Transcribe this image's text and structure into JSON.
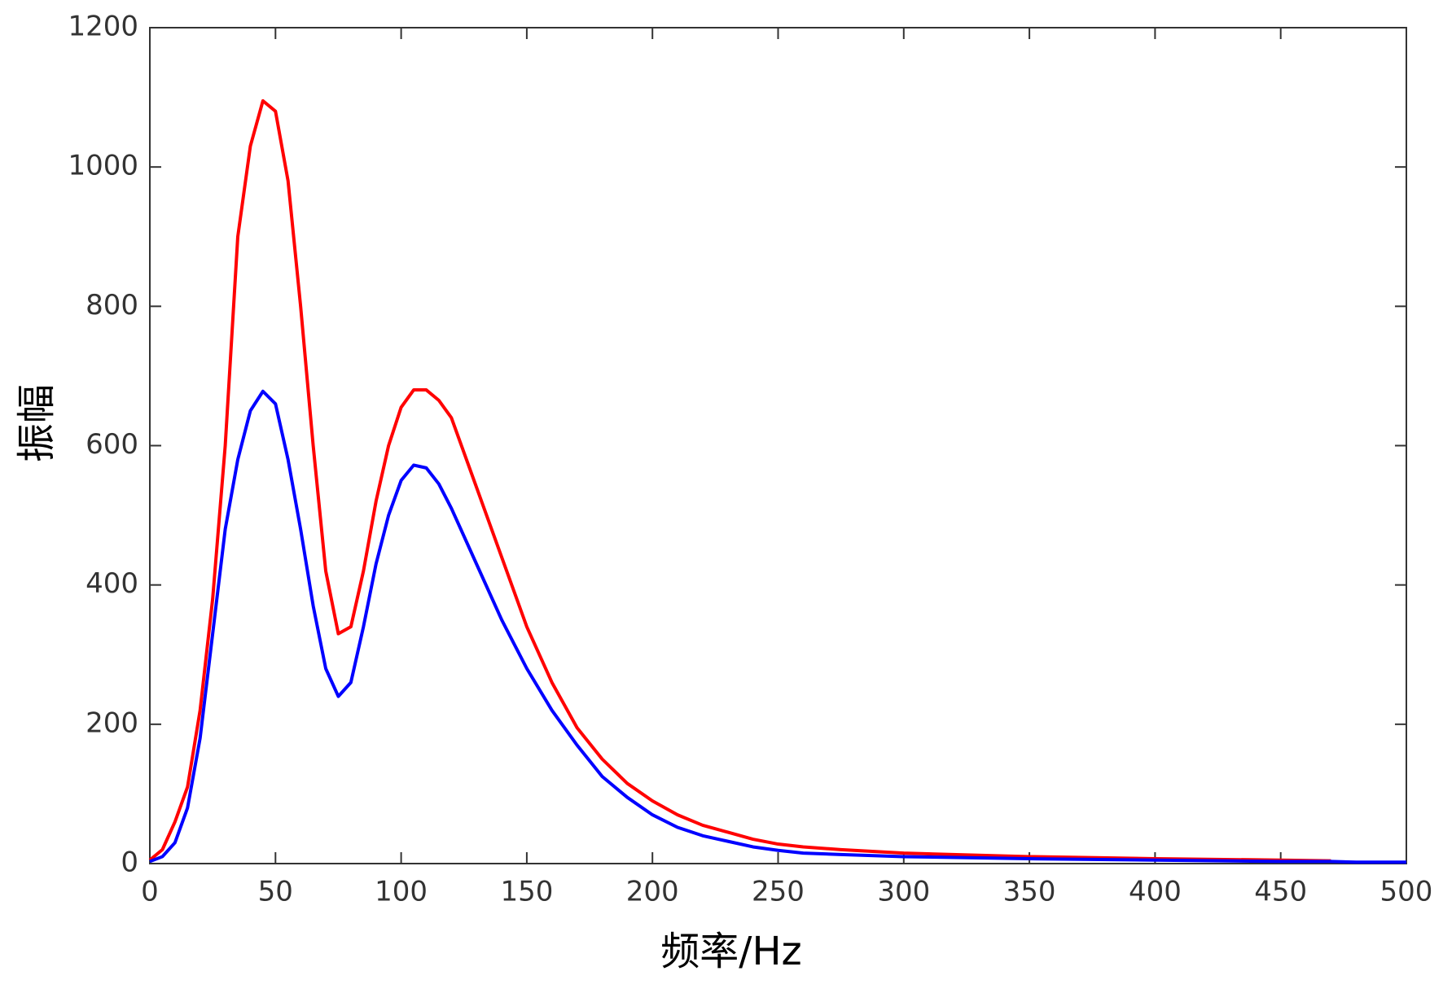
{
  "chart_data": {
    "type": "line",
    "xlabel": "频率/Hz",
    "ylabel": "振幅",
    "x": [
      0,
      5,
      10,
      15,
      20,
      25,
      30,
      35,
      40,
      45,
      50,
      55,
      60,
      65,
      70,
      75,
      80,
      85,
      90,
      95,
      100,
      105,
      110,
      115,
      120,
      130,
      140,
      150,
      160,
      170,
      180,
      190,
      200,
      210,
      220,
      230,
      240,
      250,
      260,
      275,
      300,
      350,
      400,
      450,
      470,
      480,
      490,
      500
    ],
    "series": [
      {
        "color": "#ff0000",
        "values": [
          5,
          20,
          60,
          110,
          220,
          380,
          600,
          900,
          1030,
          1095,
          1080,
          980,
          800,
          600,
          420,
          330,
          340,
          420,
          520,
          600,
          655,
          680,
          680,
          665,
          640,
          540,
          440,
          340,
          260,
          195,
          150,
          115,
          90,
          70,
          55,
          45,
          35,
          28,
          24,
          20,
          15,
          10,
          7,
          5,
          4,
          null,
          null,
          null
        ]
      },
      {
        "color": "#0000ff",
        "values": [
          3,
          10,
          30,
          80,
          180,
          330,
          480,
          580,
          650,
          678,
          660,
          580,
          480,
          370,
          280,
          240,
          260,
          340,
          430,
          500,
          550,
          572,
          568,
          545,
          510,
          430,
          350,
          280,
          220,
          170,
          125,
          95,
          70,
          52,
          40,
          32,
          24,
          19,
          15,
          13,
          10,
          7,
          5,
          3,
          3,
          2,
          2,
          2
        ]
      }
    ],
    "xlim": [
      0,
      500
    ],
    "xticks": [
      0,
      50,
      100,
      150,
      200,
      250,
      300,
      350,
      400,
      450,
      500
    ],
    "ylim": [
      0,
      1200
    ],
    "yticks": [
      0,
      200,
      400,
      600,
      800,
      1000,
      1200
    ],
    "grid": false
  }
}
